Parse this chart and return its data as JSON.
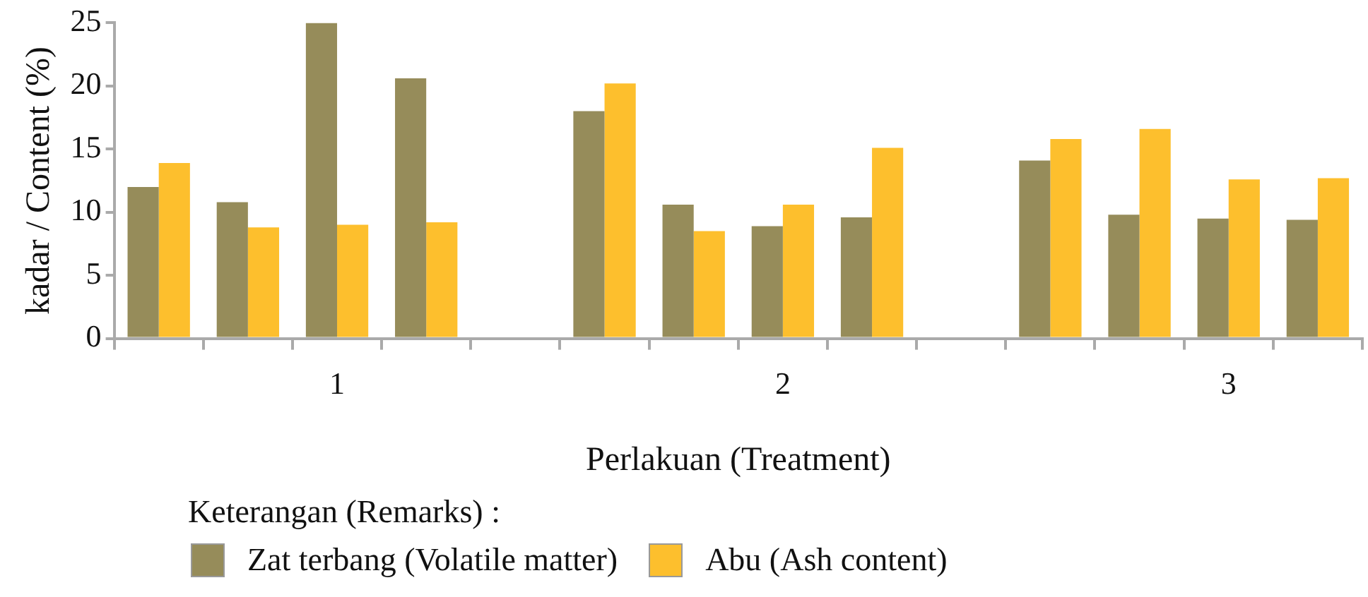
{
  "chart_data": {
    "type": "bar",
    "xlabel": "Perlakuan (Treatment)",
    "ylabel": "kadar / Content (%)",
    "legend_title": "Keterangan (Remarks) :",
    "legend": "bottom",
    "grid": false,
    "categories": [
      null,
      null,
      "1",
      null,
      null,
      null,
      null,
      "2",
      null,
      null,
      null,
      null,
      "3",
      null
    ],
    "ylim": [
      0,
      25
    ],
    "yticks": [
      0,
      5,
      10,
      15,
      20,
      25
    ],
    "series": [
      {
        "name": "Zat terbang (Volatile matter)",
        "color": "#968c5a",
        "values": [
          12.0,
          10.8,
          25.0,
          20.6,
          null,
          18.0,
          10.6,
          8.9,
          9.6,
          null,
          14.1,
          9.8,
          9.5,
          9.4
        ]
      },
      {
        "name": "Abu (Ash content)",
        "color": "#fdbf2d",
        "values": [
          13.9,
          8.8,
          9.0,
          9.2,
          null,
          20.2,
          8.5,
          10.6,
          15.1,
          null,
          15.8,
          16.6,
          12.6,
          12.7
        ]
      }
    ]
  }
}
